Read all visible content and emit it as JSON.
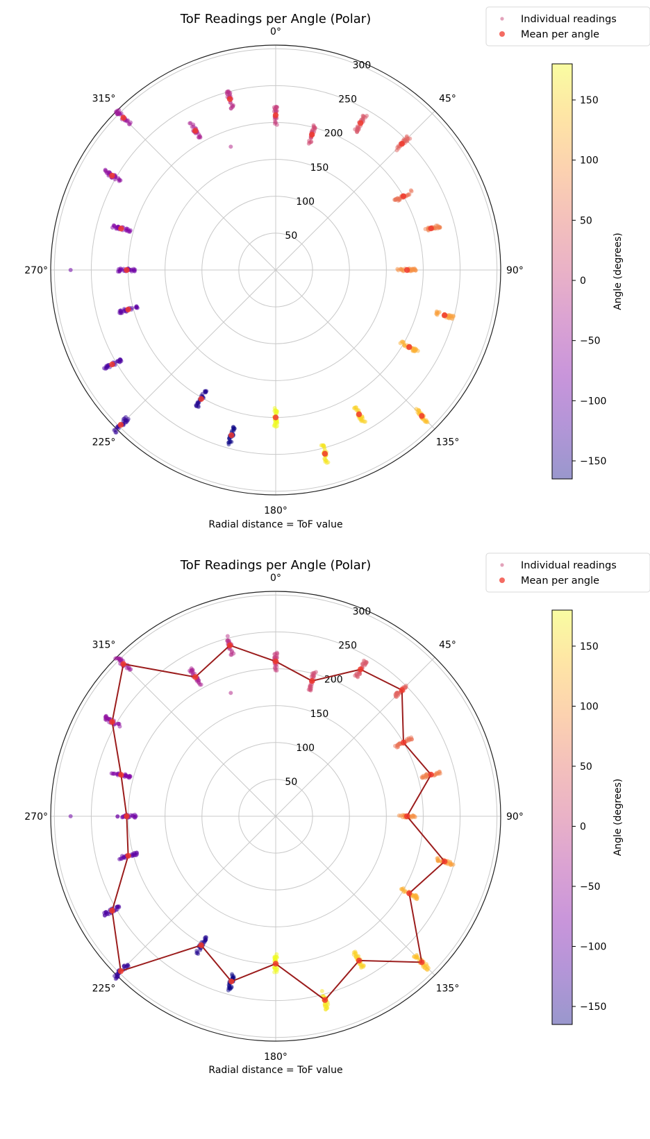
{
  "chart_data": [
    {
      "type": "polar-scatter",
      "title": "ToF Readings per Angle (Polar)",
      "xlabel": "Radial distance = ToF value",
      "angle_ticks": [
        "0°",
        "45°",
        "90°",
        "135°",
        "180°",
        "225°",
        "270°",
        "315°"
      ],
      "radial_ticks": [
        "50",
        "100",
        "150",
        "200",
        "250",
        "300"
      ],
      "rlim": [
        0,
        305
      ],
      "theta_zero": "N",
      "theta_direction": "clockwise",
      "legend": {
        "items": [
          "Individual readings",
          "Mean per angle"
        ],
        "placement": "top-right"
      },
      "colorbar": {
        "label": "Angle (degrees)",
        "colormap": "plasma",
        "range": [
          -165,
          180
        ],
        "ticks": [
          "150",
          "100",
          "50",
          "0",
          "−50",
          "−100",
          "−150"
        ]
      },
      "connect_means": false,
      "means": [
        {
          "angle": 0,
          "r": 210
        },
        {
          "angle": 15,
          "r": 190
        },
        {
          "angle": 30,
          "r": 230
        },
        {
          "angle": 45,
          "r": 242
        },
        {
          "angle": 60,
          "r": 200
        },
        {
          "angle": 75,
          "r": 218
        },
        {
          "angle": 90,
          "r": 178
        },
        {
          "angle": 105,
          "r": 237
        },
        {
          "angle": 120,
          "r": 209
        },
        {
          "angle": 135,
          "r": 280
        },
        {
          "angle": 150,
          "r": 226
        },
        {
          "angle": 165,
          "r": 258
        },
        {
          "angle": 180,
          "r": 200
        },
        {
          "angle": 195,
          "r": 232
        },
        {
          "angle": 210,
          "r": 202
        },
        {
          "angle": 225,
          "r": 297
        },
        {
          "angle": 240,
          "r": 256
        },
        {
          "angle": 255,
          "r": 207
        },
        {
          "angle": 270,
          "r": 202
        },
        {
          "angle": 285,
          "r": 217
        },
        {
          "angle": 300,
          "r": 256
        },
        {
          "angle": 315,
          "r": 292
        },
        {
          "angle": 330,
          "r": 218
        },
        {
          "angle": 345,
          "r": 240
        }
      ],
      "outliers": [
        {
          "angle": 340,
          "r": 178
        },
        {
          "angle": 270,
          "r": 278
        }
      ]
    },
    {
      "type": "polar-scatter",
      "title": "ToF Readings per Angle (Polar)",
      "xlabel": "Radial distance = ToF value",
      "angle_ticks": [
        "0°",
        "45°",
        "90°",
        "135°",
        "180°",
        "225°",
        "270°",
        "315°"
      ],
      "radial_ticks": [
        "50",
        "100",
        "150",
        "200",
        "250",
        "300"
      ],
      "rlim": [
        0,
        305
      ],
      "theta_zero": "N",
      "theta_direction": "clockwise",
      "legend": {
        "items": [
          "Individual readings",
          "Mean per angle"
        ],
        "placement": "top-right"
      },
      "colorbar": {
        "label": "Angle (degrees)",
        "colormap": "plasma",
        "range": [
          -165,
          180
        ],
        "ticks": [
          "150",
          "100",
          "50",
          "0",
          "−50",
          "−100",
          "−150"
        ]
      },
      "connect_means": true,
      "line_color": "#9b1c1c",
      "means": [
        {
          "angle": 0,
          "r": 210
        },
        {
          "angle": 15,
          "r": 190
        },
        {
          "angle": 30,
          "r": 230
        },
        {
          "angle": 45,
          "r": 242
        },
        {
          "angle": 60,
          "r": 200
        },
        {
          "angle": 75,
          "r": 218
        },
        {
          "angle": 90,
          "r": 178
        },
        {
          "angle": 105,
          "r": 237
        },
        {
          "angle": 120,
          "r": 209
        },
        {
          "angle": 135,
          "r": 280
        },
        {
          "angle": 150,
          "r": 226
        },
        {
          "angle": 165,
          "r": 258
        },
        {
          "angle": 180,
          "r": 200
        },
        {
          "angle": 195,
          "r": 232
        },
        {
          "angle": 210,
          "r": 202
        },
        {
          "angle": 225,
          "r": 297
        },
        {
          "angle": 240,
          "r": 256
        },
        {
          "angle": 255,
          "r": 207
        },
        {
          "angle": 270,
          "r": 202
        },
        {
          "angle": 285,
          "r": 217
        },
        {
          "angle": 300,
          "r": 256
        },
        {
          "angle": 315,
          "r": 292
        },
        {
          "angle": 330,
          "r": 218
        },
        {
          "angle": 345,
          "r": 240
        }
      ],
      "outliers": [
        {
          "angle": 340,
          "r": 178
        },
        {
          "angle": 270,
          "r": 278
        }
      ]
    }
  ]
}
